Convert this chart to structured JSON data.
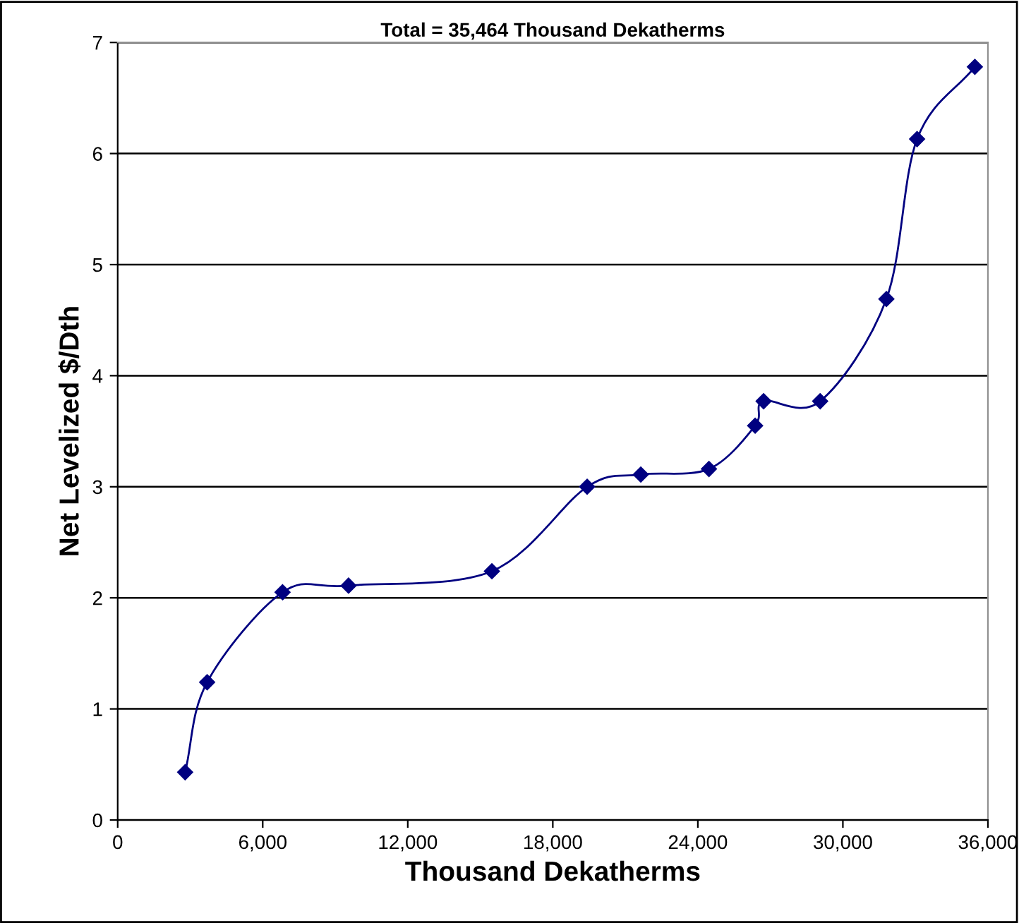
{
  "chart_data": {
    "type": "line",
    "title": "Total = 35,464 Thousand Dekatherms",
    "xlabel": "Thousand Dekatherms",
    "ylabel": "Net Levelized $/Dth",
    "series": [
      {
        "color": "#000080",
        "x": [
          2790,
          3700,
          6820,
          9550,
          15480,
          19420,
          21640,
          24460,
          26370,
          26720,
          29060,
          31800,
          33070,
          35460
        ],
        "values": [
          0.43,
          1.24,
          2.05,
          2.11,
          2.24,
          3.0,
          3.11,
          3.16,
          3.55,
          3.77,
          3.77,
          4.69,
          6.13,
          6.78
        ]
      }
    ],
    "xlim": [
      0,
      36000
    ],
    "xticks": [
      0,
      {
        "value": 6000,
        "label": "6,000"
      },
      {
        "value": 12000,
        "label": "12,000"
      },
      {
        "value": 18000,
        "label": "18,000"
      },
      {
        "value": 24000,
        "label": "24,000"
      },
      {
        "value": 30000,
        "label": "30,000"
      },
      {
        "value": 36000,
        "label": "36,000"
      }
    ],
    "ylim": [
      0,
      7
    ],
    "yticks": [
      0,
      1,
      2,
      3,
      4,
      5,
      6,
      7
    ],
    "grid": "y",
    "marker": "diamond",
    "line_style": "solid"
  }
}
